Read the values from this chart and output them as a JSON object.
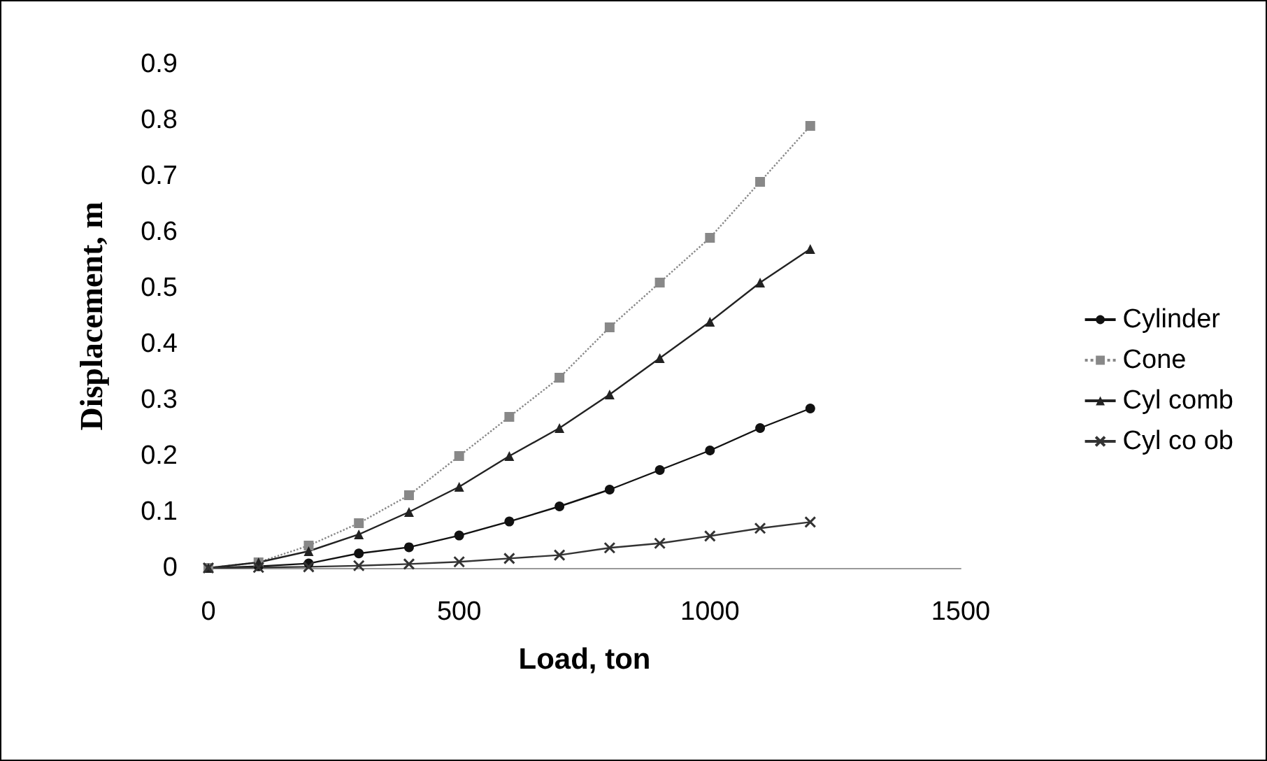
{
  "chart_data": {
    "type": "line",
    "xlabel": "Load, ton",
    "ylabel": "Displacement, m",
    "x": [
      0,
      100,
      200,
      300,
      400,
      500,
      600,
      700,
      800,
      900,
      1000,
      1100,
      1200
    ],
    "series": [
      {
        "name": "Cylinder",
        "color": "#111111",
        "marker": "circle",
        "line_style": "solid",
        "values": [
          0,
          0.003,
          0.008,
          0.026,
          0.037,
          0.058,
          0.083,
          0.11,
          0.14,
          0.175,
          0.21,
          0.25,
          0.285
        ]
      },
      {
        "name": "Cone",
        "color": "#888888",
        "marker": "square",
        "line_style": "dotted",
        "values": [
          0,
          0.01,
          0.04,
          0.08,
          0.13,
          0.2,
          0.27,
          0.34,
          0.43,
          0.51,
          0.59,
          0.69,
          0.79
        ]
      },
      {
        "name": "Cyl comb",
        "color": "#222222",
        "marker": "triangle",
        "line_style": "solid",
        "values": [
          0,
          0.01,
          0.03,
          0.06,
          0.1,
          0.145,
          0.2,
          0.25,
          0.31,
          0.375,
          0.44,
          0.51,
          0.57
        ]
      },
      {
        "name": "Cyl co ob",
        "color": "#333333",
        "marker": "cross",
        "line_style": "solid",
        "values": [
          0,
          0.001,
          0.002,
          0.004,
          0.007,
          0.011,
          0.017,
          0.023,
          0.036,
          0.044,
          0.057,
          0.071,
          0.082
        ]
      }
    ],
    "xlim": [
      0,
      1500
    ],
    "xticks": [
      0,
      500,
      1000,
      1500
    ],
    "ylim": [
      0,
      0.9
    ],
    "yticks": [
      0,
      0.1,
      0.2,
      0.3,
      0.4,
      0.5,
      0.6,
      0.7,
      0.8,
      0.9
    ],
    "grid": false,
    "legend": "right"
  }
}
